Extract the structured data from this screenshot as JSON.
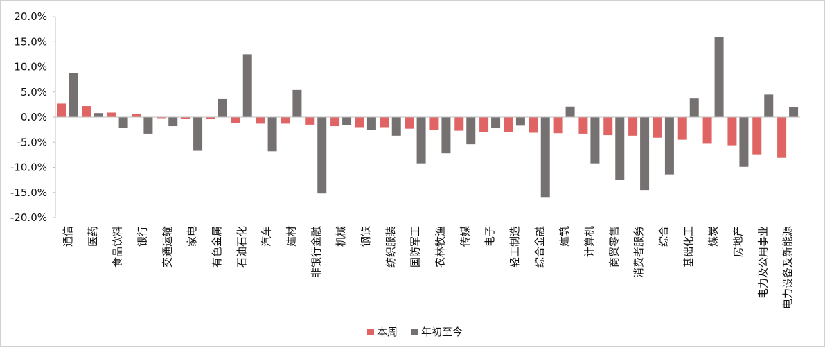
{
  "colors": {
    "this_week": "#e06464",
    "ytd": "#757171",
    "axis": "#bfbfbf"
  },
  "chart_data": {
    "type": "bar",
    "categories": [
      "通信",
      "医药",
      "食品饮料",
      "银行",
      "交通运输",
      "家电",
      "有色金属",
      "石油石化",
      "汽车",
      "建材",
      "非银行金融",
      "机械",
      "钢铁",
      "纺织服装",
      "国防军工",
      "农林牧渔",
      "传媒",
      "电子",
      "轻工制造",
      "综合金融",
      "建筑",
      "计算机",
      "商贸零售",
      "消费者服务",
      "综合",
      "基础化工",
      "煤炭",
      "房地产",
      "电力及公用事业",
      "电力设备及新能源"
    ],
    "series": [
      {
        "name": "本周",
        "values": [
          2.7,
          2.2,
          0.9,
          0.6,
          -0.2,
          -0.4,
          -0.4,
          -1.1,
          -1.3,
          -1.3,
          -1.5,
          -1.8,
          -2.0,
          -2.0,
          -2.3,
          -2.5,
          -2.7,
          -2.9,
          -2.9,
          -3.1,
          -3.2,
          -3.3,
          -3.6,
          -3.7,
          -4.1,
          -4.5,
          -5.3,
          -5.6,
          -7.4,
          -8.1
        ]
      },
      {
        "name": "年初至今",
        "values": [
          8.8,
          0.8,
          -2.2,
          -3.3,
          -1.8,
          -6.7,
          3.6,
          12.5,
          -6.8,
          5.4,
          -15.2,
          -1.6,
          -2.6,
          -3.7,
          -9.2,
          -7.2,
          -5.4,
          -2.1,
          -1.7,
          -15.9,
          2.1,
          -9.2,
          -12.5,
          -14.5,
          -11.4,
          3.7,
          15.9,
          -9.9,
          4.5,
          2.0
        ]
      }
    ],
    "yticks": [
      "20.0%",
      "15.0%",
      "10.0%",
      "5.0%",
      "0.0%",
      "-5.0%",
      "-10.0%",
      "-15.0%",
      "-20.0%"
    ],
    "ylim": [
      -20,
      20
    ],
    "legend_position": "bottom-center",
    "grid": false
  }
}
